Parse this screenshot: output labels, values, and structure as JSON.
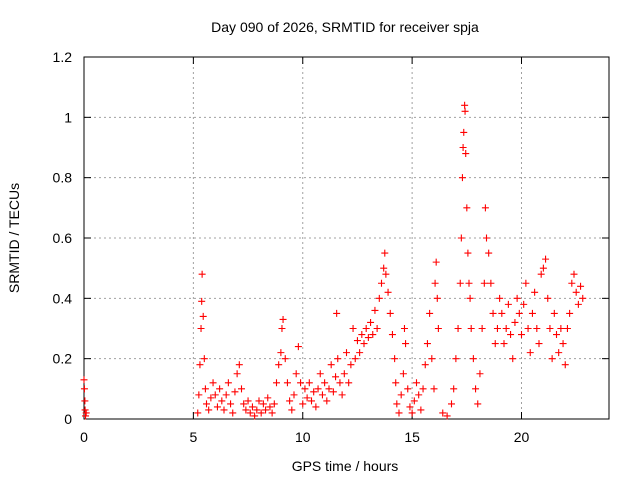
{
  "chart_data": {
    "type": "scatter",
    "title": "Day 090 of 2026, SRMTID for receiver spja",
    "xlabel": "GPS time / hours",
    "ylabel": "SRMTID / TECUs",
    "xlim": [
      0,
      24
    ],
    "ylim": [
      0,
      1.2
    ],
    "x_ticks": [
      0,
      5,
      10,
      15,
      20
    ],
    "x_tick_labels": [
      "0",
      "5",
      "10",
      "15",
      "20"
    ],
    "y_ticks": [
      0,
      0.2,
      0.4,
      0.6,
      0.8,
      1.0,
      1.2
    ],
    "y_tick_labels": [
      "0",
      "0.2",
      "0.4",
      "0.6",
      "0.8",
      "1",
      "1.2"
    ],
    "grid": true,
    "marker": "plus",
    "series": [
      {
        "name": "SRMTID",
        "color": "#ff0000",
        "points": [
          [
            0.0,
            0.13
          ],
          [
            0.02,
            0.1
          ],
          [
            0.04,
            0.06
          ],
          [
            0.05,
            0.03
          ],
          [
            0.07,
            0.01
          ],
          [
            0.1,
            0.02
          ],
          [
            5.2,
            0.02
          ],
          [
            5.25,
            0.08
          ],
          [
            5.3,
            0.18
          ],
          [
            5.35,
            0.3
          ],
          [
            5.38,
            0.39
          ],
          [
            5.4,
            0.48
          ],
          [
            5.45,
            0.34
          ],
          [
            5.5,
            0.2
          ],
          [
            5.55,
            0.1
          ],
          [
            5.6,
            0.05
          ],
          [
            5.7,
            0.03
          ],
          [
            5.8,
            0.07
          ],
          [
            5.9,
            0.12
          ],
          [
            6.0,
            0.08
          ],
          [
            6.1,
            0.04
          ],
          [
            6.2,
            0.1
          ],
          [
            6.3,
            0.06
          ],
          [
            6.4,
            0.03
          ],
          [
            6.5,
            0.08
          ],
          [
            6.6,
            0.12
          ],
          [
            6.7,
            0.05
          ],
          [
            6.8,
            0.02
          ],
          [
            6.9,
            0.09
          ],
          [
            7.0,
            0.15
          ],
          [
            7.1,
            0.18
          ],
          [
            7.2,
            0.1
          ],
          [
            7.3,
            0.05
          ],
          [
            7.4,
            0.03
          ],
          [
            7.5,
            0.06
          ],
          [
            7.6,
            0.02
          ],
          [
            7.7,
            0.04
          ],
          [
            7.8,
            0.01
          ],
          [
            7.9,
            0.03
          ],
          [
            8.0,
            0.06
          ],
          [
            8.1,
            0.02
          ],
          [
            8.2,
            0.05
          ],
          [
            8.3,
            0.03
          ],
          [
            8.4,
            0.07
          ],
          [
            8.5,
            0.04
          ],
          [
            8.6,
            0.02
          ],
          [
            8.7,
            0.05
          ],
          [
            8.8,
            0.12
          ],
          [
            8.9,
            0.18
          ],
          [
            9.0,
            0.22
          ],
          [
            9.05,
            0.3
          ],
          [
            9.1,
            0.33
          ],
          [
            9.2,
            0.2
          ],
          [
            9.3,
            0.12
          ],
          [
            9.4,
            0.06
          ],
          [
            9.5,
            0.03
          ],
          [
            9.6,
            0.08
          ],
          [
            9.7,
            0.15
          ],
          [
            9.8,
            0.24
          ],
          [
            9.9,
            0.12
          ],
          [
            10.0,
            0.05
          ],
          [
            10.1,
            0.1
          ],
          [
            10.2,
            0.07
          ],
          [
            10.3,
            0.12
          ],
          [
            10.4,
            0.06
          ],
          [
            10.5,
            0.09
          ],
          [
            10.6,
            0.04
          ],
          [
            10.7,
            0.1
          ],
          [
            10.8,
            0.15
          ],
          [
            10.9,
            0.08
          ],
          [
            11.0,
            0.12
          ],
          [
            11.1,
            0.06
          ],
          [
            11.2,
            0.1
          ],
          [
            11.3,
            0.18
          ],
          [
            11.4,
            0.09
          ],
          [
            11.5,
            0.14
          ],
          [
            11.55,
            0.35
          ],
          [
            11.6,
            0.2
          ],
          [
            11.7,
            0.12
          ],
          [
            11.8,
            0.08
          ],
          [
            11.9,
            0.15
          ],
          [
            12.0,
            0.22
          ],
          [
            12.1,
            0.12
          ],
          [
            12.2,
            0.18
          ],
          [
            12.3,
            0.3
          ],
          [
            12.4,
            0.2
          ],
          [
            12.5,
            0.26
          ],
          [
            12.6,
            0.22
          ],
          [
            12.7,
            0.28
          ],
          [
            12.8,
            0.25
          ],
          [
            12.9,
            0.3
          ],
          [
            13.0,
            0.27
          ],
          [
            13.1,
            0.32
          ],
          [
            13.2,
            0.28
          ],
          [
            13.3,
            0.36
          ],
          [
            13.4,
            0.3
          ],
          [
            13.5,
            0.4
          ],
          [
            13.6,
            0.45
          ],
          [
            13.7,
            0.5
          ],
          [
            13.75,
            0.55
          ],
          [
            13.8,
            0.48
          ],
          [
            13.9,
            0.42
          ],
          [
            14.0,
            0.35
          ],
          [
            14.1,
            0.28
          ],
          [
            14.2,
            0.2
          ],
          [
            14.25,
            0.12
          ],
          [
            14.3,
            0.05
          ],
          [
            14.4,
            0.02
          ],
          [
            14.5,
            0.08
          ],
          [
            14.6,
            0.15
          ],
          [
            14.65,
            0.3
          ],
          [
            14.7,
            0.25
          ],
          [
            14.8,
            0.1
          ],
          [
            14.9,
            0.04
          ],
          [
            15.0,
            0.02
          ],
          [
            15.1,
            0.06
          ],
          [
            15.2,
            0.12
          ],
          [
            15.3,
            0.08
          ],
          [
            15.4,
            0.03
          ],
          [
            15.5,
            0.1
          ],
          [
            15.6,
            0.18
          ],
          [
            15.7,
            0.25
          ],
          [
            15.8,
            0.35
          ],
          [
            15.9,
            0.2
          ],
          [
            16.0,
            0.1
          ],
          [
            16.05,
            0.45
          ],
          [
            16.1,
            0.52
          ],
          [
            16.15,
            0.4
          ],
          [
            16.2,
            0.3
          ],
          [
            16.4,
            0.02
          ],
          [
            16.6,
            0.01
          ],
          [
            16.8,
            0.05
          ],
          [
            16.9,
            0.1
          ],
          [
            17.0,
            0.2
          ],
          [
            17.1,
            0.3
          ],
          [
            17.2,
            0.45
          ],
          [
            17.25,
            0.6
          ],
          [
            17.3,
            0.8
          ],
          [
            17.33,
            0.9
          ],
          [
            17.36,
            0.95
          ],
          [
            17.4,
            1.04
          ],
          [
            17.42,
            1.02
          ],
          [
            17.45,
            0.88
          ],
          [
            17.5,
            0.7
          ],
          [
            17.55,
            0.55
          ],
          [
            17.6,
            0.45
          ],
          [
            17.65,
            0.4
          ],
          [
            17.7,
            0.3
          ],
          [
            17.8,
            0.2
          ],
          [
            17.9,
            0.1
          ],
          [
            18.0,
            0.05
          ],
          [
            18.1,
            0.15
          ],
          [
            18.2,
            0.3
          ],
          [
            18.3,
            0.45
          ],
          [
            18.35,
            0.7
          ],
          [
            18.4,
            0.6
          ],
          [
            18.5,
            0.55
          ],
          [
            18.6,
            0.45
          ],
          [
            18.7,
            0.35
          ],
          [
            18.8,
            0.25
          ],
          [
            18.9,
            0.3
          ],
          [
            19.0,
            0.4
          ],
          [
            19.1,
            0.35
          ],
          [
            19.2,
            0.25
          ],
          [
            19.3,
            0.3
          ],
          [
            19.4,
            0.38
          ],
          [
            19.5,
            0.28
          ],
          [
            19.6,
            0.2
          ],
          [
            19.7,
            0.32
          ],
          [
            19.8,
            0.4
          ],
          [
            19.9,
            0.35
          ],
          [
            20.0,
            0.28
          ],
          [
            20.1,
            0.38
          ],
          [
            20.2,
            0.45
          ],
          [
            20.3,
            0.3
          ],
          [
            20.4,
            0.22
          ],
          [
            20.5,
            0.35
          ],
          [
            20.6,
            0.42
          ],
          [
            20.7,
            0.3
          ],
          [
            20.8,
            0.25
          ],
          [
            20.9,
            0.48
          ],
          [
            21.0,
            0.5
          ],
          [
            21.1,
            0.53
          ],
          [
            21.2,
            0.4
          ],
          [
            21.3,
            0.3
          ],
          [
            21.4,
            0.2
          ],
          [
            21.5,
            0.35
          ],
          [
            21.6,
            0.28
          ],
          [
            21.7,
            0.22
          ],
          [
            21.8,
            0.3
          ],
          [
            21.9,
            0.25
          ],
          [
            22.0,
            0.18
          ],
          [
            22.1,
            0.3
          ],
          [
            22.2,
            0.35
          ],
          [
            22.3,
            0.45
          ],
          [
            22.4,
            0.48
          ],
          [
            22.5,
            0.42
          ],
          [
            22.6,
            0.38
          ],
          [
            22.7,
            0.44
          ],
          [
            22.8,
            0.4
          ]
        ]
      }
    ]
  }
}
